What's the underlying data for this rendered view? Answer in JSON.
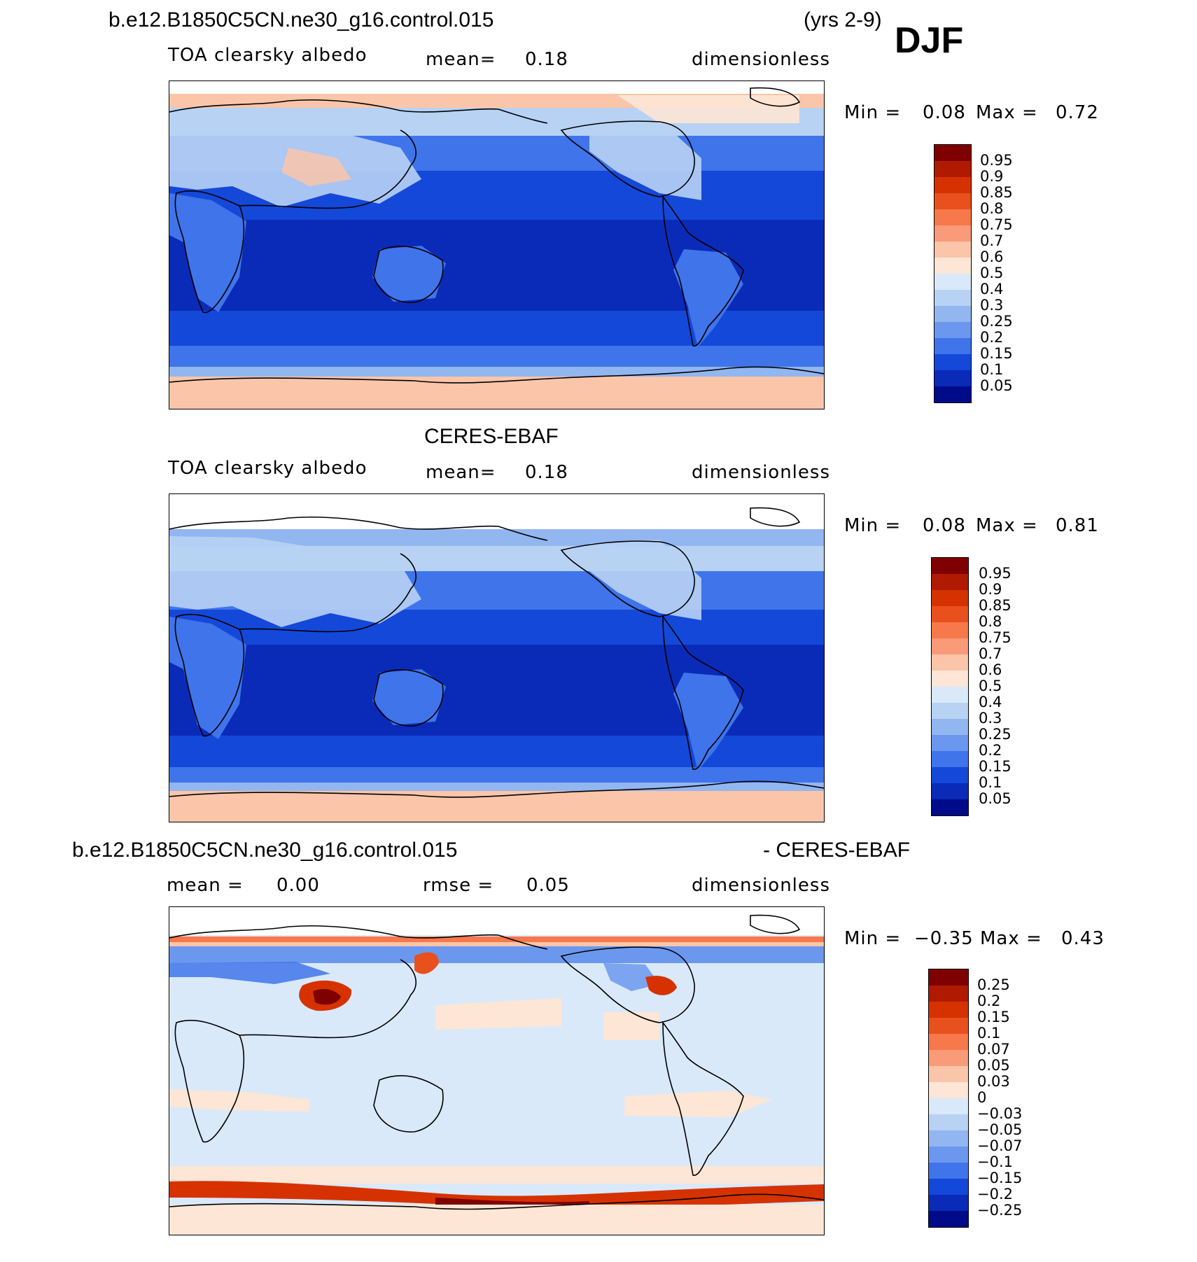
{
  "page": {
    "case_title": "b.e12.B1850C5CN.ne30_g16.control.015",
    "years": "(yrs 2-9)",
    "season": "DJF"
  },
  "panels": [
    {
      "id": "model",
      "header": "",
      "variable": "TOA clearsky albedo",
      "stat_label": "mean=",
      "stat_value": "0.18",
      "units": "dimensionless",
      "min_label": "Min =",
      "min_value": "0.08",
      "max_label": "Max =",
      "max_value": "0.72"
    },
    {
      "id": "obs",
      "header": "CERES-EBAF",
      "variable": "TOA clearsky albedo",
      "stat_label": "mean=",
      "stat_value": "0.18",
      "units": "dimensionless",
      "min_label": "Min =",
      "min_value": "0.08",
      "max_label": "Max =",
      "max_value": "0.81"
    },
    {
      "id": "diff",
      "header_left": "b.e12.B1850C5CN.ne30_g16.control.015",
      "header_right": "- CERES-EBAF",
      "mean_label": "mean =",
      "mean_value": "0.00",
      "rmse_label": "rmse =",
      "rmse_value": "0.05",
      "units": "dimensionless",
      "min_label": "Min =",
      "min_value": "−0.35",
      "max_label": "Max =",
      "max_value": "0.43"
    }
  ],
  "colorbars": {
    "albedo": {
      "labels": [
        "0.95",
        "0.9",
        "0.85",
        "0.8",
        "0.75",
        "0.7",
        "0.6",
        "0.5",
        "0.4",
        "0.3",
        "0.25",
        "0.2",
        "0.15",
        "0.1",
        "0.05"
      ],
      "colors": [
        "#7f0000",
        "#b01a00",
        "#d63200",
        "#e8501e",
        "#f7784a",
        "#f99a78",
        "#fac5a9",
        "#fde6d6",
        "#d9e9f9",
        "#b8d2f4",
        "#92b6f0",
        "#6b98ee",
        "#3f74ea",
        "#1448d9",
        "#0a2ab8",
        "#000b8a"
      ]
    },
    "difference": {
      "labels": [
        "0.25",
        "0.2",
        "0.15",
        "0.1",
        "0.07",
        "0.05",
        "0.03",
        "0",
        "−0.03",
        "−0.05",
        "−0.07",
        "−0.1",
        "−0.15",
        "−0.2",
        "−0.25"
      ],
      "colors": [
        "#7f0000",
        "#b01a00",
        "#d63200",
        "#e8501e",
        "#f7784a",
        "#f99a78",
        "#fac5a9",
        "#fde6d6",
        "#d9e9f9",
        "#b8d2f4",
        "#92b6f0",
        "#6b98ee",
        "#3f74ea",
        "#1448d9",
        "#0a2ab8",
        "#000b8a"
      ]
    }
  },
  "chart_data": [
    {
      "type": "heatmap",
      "title": "TOA clearsky albedo",
      "source": "b.e12.B1850C5CN.ne30_g16.control.015",
      "mean": 0.18,
      "min": 0.08,
      "max": 0.72,
      "units": "dimensionless",
      "contour_levels": [
        0.05,
        0.1,
        0.15,
        0.2,
        0.25,
        0.3,
        0.4,
        0.5,
        0.6,
        0.7,
        0.75,
        0.8,
        0.85,
        0.9,
        0.95
      ]
    },
    {
      "type": "heatmap",
      "title": "TOA clearsky albedo",
      "source": "CERES-EBAF",
      "mean": 0.18,
      "min": 0.08,
      "max": 0.81,
      "units": "dimensionless",
      "contour_levels": [
        0.05,
        0.1,
        0.15,
        0.2,
        0.25,
        0.3,
        0.4,
        0.5,
        0.6,
        0.7,
        0.75,
        0.8,
        0.85,
        0.9,
        0.95
      ]
    },
    {
      "type": "heatmap",
      "title": "b.e12.B1850C5CN.ne30_g16.control.015 - CERES-EBAF",
      "mean": 0.0,
      "rmse": 0.05,
      "min": -0.35,
      "max": 0.43,
      "units": "dimensionless",
      "contour_levels": [
        -0.25,
        -0.2,
        -0.15,
        -0.1,
        -0.07,
        -0.05,
        -0.03,
        0,
        0.03,
        0.05,
        0.07,
        0.1,
        0.15,
        0.2,
        0.25
      ]
    }
  ]
}
